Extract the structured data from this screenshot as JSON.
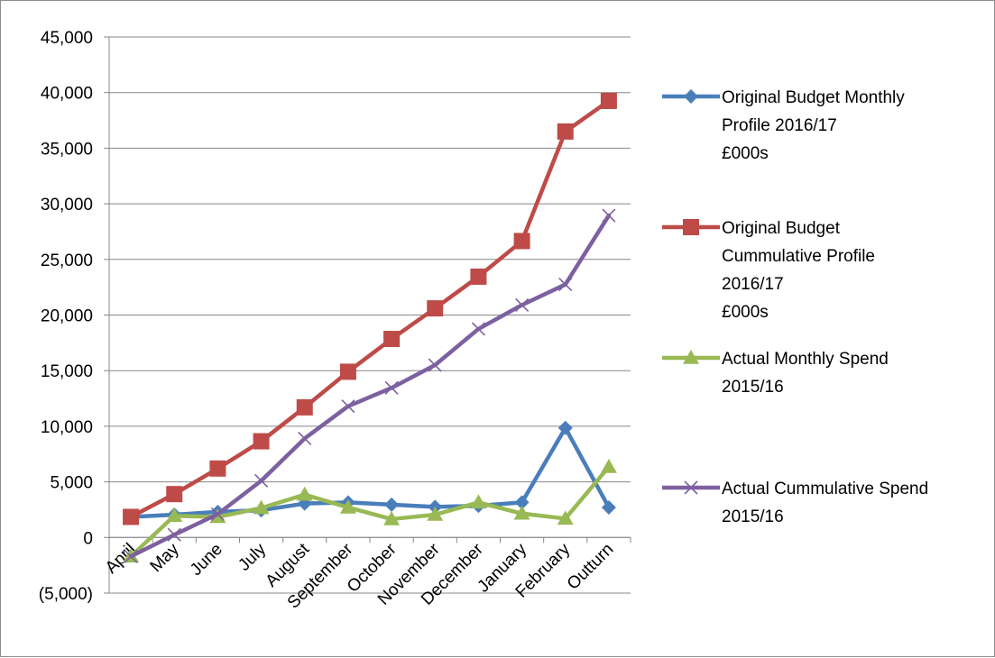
{
  "chart_data": {
    "type": "line",
    "title": "",
    "xlabel": "",
    "ylabel": "",
    "categories": [
      "April",
      "May",
      "June",
      "July",
      "August",
      "September",
      "October",
      "November",
      "December",
      "January",
      "February",
      "Outturn"
    ],
    "ylim": [
      -5000,
      45000
    ],
    "ytick_step": 5000,
    "yticks": [
      "(5,000)",
      "0",
      "5,000",
      "10,000",
      "15,000",
      "20,000",
      "25,000",
      "30,000",
      "35,000",
      "40,000",
      "45,000"
    ],
    "negative_tick_color": "#ff0000",
    "grid": true,
    "legend_position": "right",
    "series": [
      {
        "name_lines": [
          "Original Budget Monthly",
          "Profile 2016/17",
          "£000s"
        ],
        "color": "#4a7ebb",
        "marker": "diamond",
        "values": [
          1850,
          2050,
          2300,
          2450,
          3050,
          3150,
          2950,
          2750,
          2850,
          3150,
          9850,
          2700
        ]
      },
      {
        "name_lines": [
          "Original Budget",
          "Cummulative Profile",
          "2016/17",
          "£000s"
        ],
        "color": "#be4b48",
        "marker": "square",
        "values": [
          1850,
          3900,
          6200,
          8650,
          11700,
          14900,
          17850,
          20600,
          23450,
          26650,
          36500,
          39250
        ]
      },
      {
        "name_lines": [
          "Actual Monthly Spend",
          "2015/16"
        ],
        "color": "#98b954",
        "marker": "triangle",
        "values": [
          -1700,
          1950,
          1850,
          2650,
          3850,
          2700,
          1650,
          2050,
          3150,
          2150,
          1700,
          6350
        ]
      },
      {
        "name_lines": [
          "Actual Cummulative Spend",
          "2015/16"
        ],
        "color": "#7d60a0",
        "marker": "x",
        "values": [
          -1700,
          250,
          2100,
          5100,
          8900,
          11800,
          13450,
          15500,
          18750,
          20900,
          22750,
          28950
        ]
      }
    ]
  }
}
